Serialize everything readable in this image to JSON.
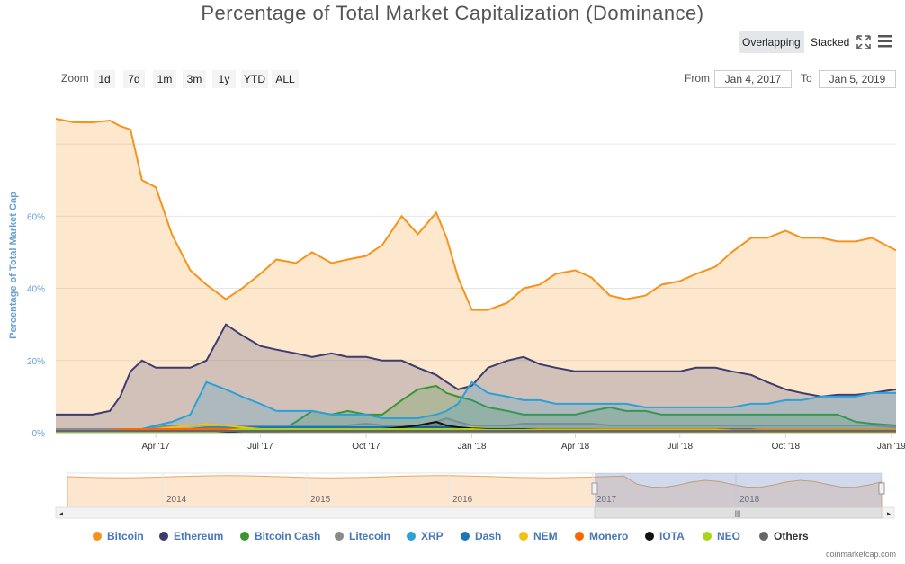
{
  "title": "Percentage of Total Market Capitalization (Dominance)",
  "toolbar": {
    "overlapping_label": "Overlapping",
    "stacked_label": "Stacked",
    "active_mode": "Overlapping",
    "fullscreen_icon": "fullscreen-icon",
    "menu_icon": "hamburger-menu-icon"
  },
  "zoom": {
    "label": "Zoom",
    "buttons": [
      "1d",
      "7d",
      "1m",
      "3m",
      "1y",
      "YTD",
      "ALL"
    ]
  },
  "range": {
    "from_label": "From",
    "from_value": "Jan 4, 2017",
    "to_label": "To",
    "to_value": "Jan 5, 2019"
  },
  "navigator": {
    "year_labels": [
      "2014",
      "2015",
      "2016",
      "2017",
      "2018"
    ],
    "scroll_grip": "|||"
  },
  "credit": "coinmarketcap.com",
  "colors": {
    "Bitcoin": "#f7931a",
    "Ethereum": "#3c3c6e",
    "Bitcoin Cash": "#3a9433",
    "Litecoin": "#8a8a8a",
    "XRP": "#2ea0d8",
    "Dash": "#1c75bc",
    "NEM": "#f4c20d",
    "Monero": "#ff6600",
    "IOTA": "#111111",
    "NEO": "#a8d41c",
    "Others": "#666666"
  },
  "chart_data": {
    "type": "area",
    "title": "Percentage of Total Market Capitalization (Dominance)",
    "ylabel": "Percentage of Total Market Cap",
    "xlabel": "",
    "ylim": [
      0,
      90
    ],
    "yticks": [
      "0%",
      "20%",
      "40%",
      "60%"
    ],
    "xticks": [
      "Apr '17",
      "Jul '17",
      "Oct '17",
      "Jan '18",
      "Apr '18",
      "Jul '18",
      "Oct '18",
      "Jan '19"
    ],
    "x_domain": [
      "Jan 4, 2017",
      "Jan 5, 2019"
    ],
    "x": [
      "2017-01-04",
      "2017-01-20",
      "2017-02-05",
      "2017-02-20",
      "2017-03-01",
      "2017-03-10",
      "2017-03-20",
      "2017-04-01",
      "2017-04-15",
      "2017-05-01",
      "2017-05-15",
      "2017-06-01",
      "2017-06-15",
      "2017-07-01",
      "2017-07-15",
      "2017-08-01",
      "2017-08-15",
      "2017-09-01",
      "2017-09-15",
      "2017-10-01",
      "2017-10-15",
      "2017-11-01",
      "2017-11-15",
      "2017-12-01",
      "2017-12-10",
      "2017-12-20",
      "2018-01-01",
      "2018-01-15",
      "2018-02-01",
      "2018-02-15",
      "2018-03-01",
      "2018-03-15",
      "2018-04-01",
      "2018-04-15",
      "2018-05-01",
      "2018-05-15",
      "2018-06-01",
      "2018-06-15",
      "2018-07-01",
      "2018-07-15",
      "2018-08-01",
      "2018-08-15",
      "2018-09-01",
      "2018-09-15",
      "2018-10-01",
      "2018-10-15",
      "2018-11-01",
      "2018-11-15",
      "2018-12-01",
      "2018-12-15",
      "2019-01-05"
    ],
    "series": [
      {
        "name": "Bitcoin",
        "values": [
          87,
          86,
          86,
          86.5,
          85,
          84,
          70,
          68,
          55,
          45,
          41,
          37,
          40,
          44,
          48,
          47,
          50,
          47,
          48,
          49,
          52,
          60,
          55,
          61,
          54,
          43,
          34,
          34,
          36,
          40,
          41,
          44,
          45,
          43,
          38,
          37,
          38,
          41,
          42,
          44,
          46,
          50,
          54,
          54,
          56,
          54,
          54,
          53,
          53,
          54,
          50.5
        ]
      },
      {
        "name": "Ethereum",
        "values": [
          5,
          5,
          5,
          6,
          10,
          17,
          20,
          18,
          18,
          18,
          20,
          30,
          27,
          24,
          23,
          22,
          21,
          22,
          21,
          21,
          20,
          20,
          18,
          16,
          14,
          12,
          13,
          18,
          20,
          21,
          19,
          18,
          17,
          17,
          17,
          17,
          17,
          17,
          17,
          18,
          18,
          17,
          16,
          14,
          12,
          11,
          10,
          10.5,
          10.5,
          11,
          12
        ]
      },
      {
        "name": "Bitcoin Cash",
        "values": [
          0,
          0,
          0,
          0,
          0,
          0,
          0,
          0,
          0,
          0,
          0,
          0,
          0,
          0,
          0,
          3,
          6,
          5,
          6,
          5,
          5,
          9,
          12,
          13,
          11,
          10,
          9,
          7,
          6,
          5,
          5,
          5,
          5,
          6,
          7,
          6,
          6,
          5,
          5,
          5,
          5,
          5,
          5,
          5,
          5,
          5,
          5,
          5,
          3,
          2.5,
          2
        ]
      },
      {
        "name": "Litecoin",
        "values": [
          1,
          1,
          1,
          1,
          1,
          1,
          1,
          1.5,
          2,
          2,
          2.5,
          2,
          2,
          2,
          2,
          2,
          2,
          2,
          2,
          2.5,
          2,
          2,
          2,
          3,
          4,
          3,
          2,
          2,
          2,
          2.5,
          2.5,
          2.5,
          2.5,
          2.5,
          2,
          2,
          2,
          2,
          2,
          2,
          2,
          2,
          2,
          2,
          2,
          2,
          2,
          2,
          2,
          2,
          1.5
        ]
      },
      {
        "name": "XRP",
        "values": [
          0.5,
          0.5,
          0.5,
          0.5,
          0.5,
          0.5,
          1,
          2,
          3,
          5,
          14,
          12,
          10,
          8,
          6,
          6,
          6,
          5,
          5,
          5,
          4,
          4,
          4,
          5,
          6,
          8,
          14,
          11,
          10,
          9,
          9,
          8,
          8,
          8,
          8,
          8,
          7,
          7,
          7,
          7,
          7,
          7,
          8,
          8,
          9,
          9,
          10,
          10,
          10,
          11,
          11
        ]
      },
      {
        "name": "Dash",
        "values": [
          0.5,
          0.5,
          0.5,
          0.5,
          0.5,
          0.5,
          1,
          1,
          1,
          1,
          1.5,
          1.5,
          1.5,
          1.5,
          1.5,
          1.5,
          1.5,
          1.5,
          1.5,
          1.5,
          1.5,
          1.5,
          1.5,
          1.5,
          1.5,
          1,
          1,
          1,
          1,
          1,
          1,
          1,
          1,
          1,
          1,
          1,
          1,
          1,
          1,
          1,
          1,
          1,
          1,
          0.5,
          0.5,
          0.5,
          0.5,
          0.5,
          0.5,
          0.5,
          0.5
        ]
      },
      {
        "name": "NEM",
        "values": [
          0.2,
          0.2,
          0.2,
          0.2,
          0.2,
          0.2,
          0.5,
          1,
          1.5,
          2,
          2.5,
          2,
          1.5,
          1,
          1,
          1,
          1,
          1,
          1,
          1,
          1,
          1,
          1,
          1,
          1,
          1,
          1.5,
          1,
          1,
          0.8,
          0.8,
          0.6,
          0.6,
          0.6,
          0.5,
          0.5,
          0.5,
          0.5,
          0.5,
          0.4,
          0.4,
          0.4,
          0.4,
          0.3,
          0.3,
          0.3,
          0.3,
          0.3,
          0.3,
          0.3,
          0.3
        ]
      },
      {
        "name": "Monero",
        "values": [
          0.5,
          0.5,
          0.5,
          0.6,
          0.8,
          1,
          1,
          1,
          1,
          1,
          1,
          1,
          1,
          1,
          1,
          1,
          1,
          1,
          1,
          1,
          1,
          1,
          1,
          1,
          1,
          1,
          1,
          1,
          1,
          1,
          1,
          1,
          1,
          1,
          1,
          1,
          1,
          1,
          1,
          1,
          1,
          0.8,
          0.8,
          0.8,
          0.8,
          0.8,
          0.8,
          0.8,
          0.8,
          0.8,
          0.8
        ]
      },
      {
        "name": "IOTA",
        "values": [
          0,
          0,
          0,
          0,
          0,
          0,
          0,
          0,
          0,
          0,
          0,
          0,
          0.5,
          1,
          1,
          1,
          1,
          1,
          1,
          1,
          1,
          1.5,
          2,
          3,
          2,
          1.5,
          1.2,
          1,
          1,
          1,
          0.8,
          0.8,
          0.8,
          0.8,
          0.7,
          0.7,
          0.6,
          0.6,
          0.6,
          0.6,
          0.6,
          0.6,
          0.6,
          0.5,
          0.5,
          0.5,
          0.5,
          0.5,
          0.5,
          0.5,
          0.5
        ]
      },
      {
        "name": "NEO",
        "values": [
          0,
          0,
          0,
          0,
          0,
          0,
          0,
          0,
          0,
          0,
          0,
          0.5,
          1,
          1,
          1,
          1,
          1,
          1,
          1,
          1,
          1,
          1,
          1,
          1,
          1,
          1,
          1,
          0.8,
          0.8,
          0.8,
          0.8,
          0.8,
          0.8,
          0.8,
          0.8,
          0.8,
          0.8,
          0.8,
          0.8,
          0.8,
          0.8,
          0.6,
          0.6,
          0.6,
          0.6,
          0.6,
          0.6,
          0.6,
          0.6,
          0.6,
          0.6
        ]
      },
      {
        "name": "Others",
        "values": [
          0.5,
          0.5,
          0.5,
          0.5,
          0.5,
          0.5,
          0.5,
          0.5,
          0.5,
          0.5,
          0.5,
          0.5,
          0.5,
          0.5,
          0.5,
          0.5,
          0.5,
          0.5,
          0.5,
          0.5,
          0.5,
          0.5,
          0.5,
          0.5,
          0.5,
          0.5,
          0.5,
          0.5,
          0.5,
          0.5,
          0.5,
          0.5,
          0.5,
          0.5,
          0.5,
          0.5,
          0.5,
          0.5,
          0.5,
          0.5,
          0.5,
          0.5,
          0.5,
          0.5,
          0.5,
          0.5,
          0.5,
          0.5,
          0.5,
          0.5,
          0.5
        ]
      }
    ],
    "legend": [
      "Bitcoin",
      "Ethereum",
      "Bitcoin Cash",
      "Litecoin",
      "XRP",
      "Dash",
      "NEM",
      "Monero",
      "IOTA",
      "NEO",
      "Others"
    ],
    "legend_position": "bottom",
    "grid": true
  }
}
